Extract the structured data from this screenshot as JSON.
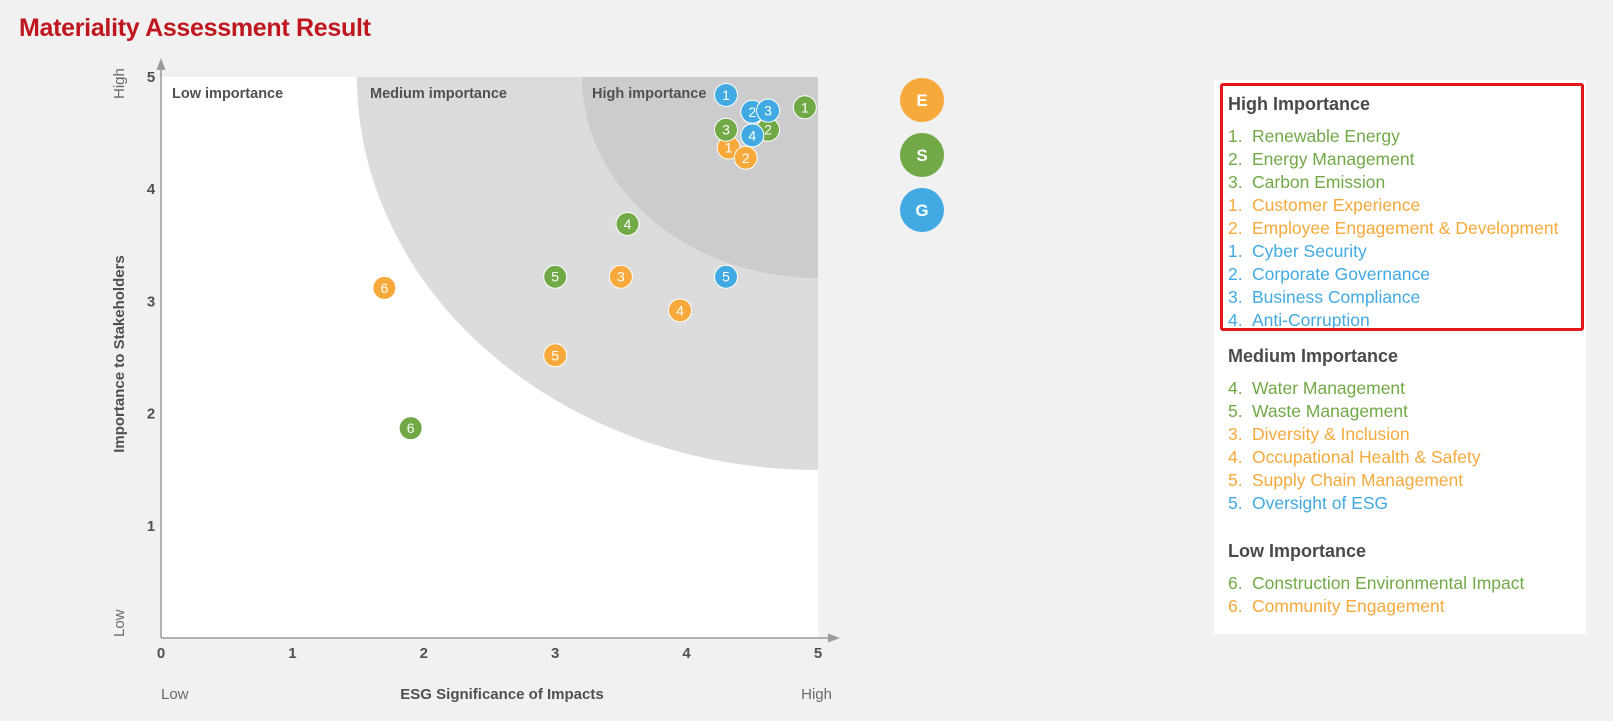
{
  "title": "Materiality Assessment Result",
  "colors": {
    "E": "#f7a93b",
    "S": "#72a947",
    "G": "#41aae3",
    "title": "#c0171e",
    "highlight": "#e3161b"
  },
  "chart_data": {
    "type": "scatter",
    "xlabel": "ESG Significance of Impacts",
    "ylabel": "Importance to Stakeholders",
    "x_low_label": "Low",
    "x_high_label": "High",
    "y_low_label": "Low",
    "y_high_label": "High",
    "xlim": [
      0,
      5
    ],
    "ylim": [
      0,
      5
    ],
    "x_ticks": [
      "0",
      "1",
      "2",
      "3",
      "4",
      "5"
    ],
    "y_ticks": [
      "1",
      "2",
      "3",
      "4",
      "5"
    ],
    "grid": false,
    "regions": [
      {
        "label": "Low importance"
      },
      {
        "label": "Medium importance"
      },
      {
        "label": "High importance"
      }
    ],
    "series": [
      {
        "name": "E",
        "color": "#f7a93b",
        "points": [
          {
            "label": "1",
            "x": 4.32,
            "y": 4.37
          },
          {
            "label": "2",
            "x": 4.45,
            "y": 4.28
          },
          {
            "label": "3",
            "x": 3.5,
            "y": 3.22
          },
          {
            "label": "4",
            "x": 3.95,
            "y": 2.92
          },
          {
            "label": "5",
            "x": 3.0,
            "y": 2.52
          },
          {
            "label": "6",
            "x": 1.7,
            "y": 3.12
          }
        ]
      },
      {
        "name": "S",
        "color": "#72a947",
        "points": [
          {
            "label": "1",
            "x": 4.9,
            "y": 4.73
          },
          {
            "label": "2",
            "x": 4.62,
            "y": 4.53
          },
          {
            "label": "3",
            "x": 4.3,
            "y": 4.53
          },
          {
            "label": "4",
            "x": 3.55,
            "y": 3.69
          },
          {
            "label": "5",
            "x": 3.0,
            "y": 3.22
          },
          {
            "label": "6",
            "x": 1.9,
            "y": 1.87
          }
        ]
      },
      {
        "name": "G",
        "color": "#41aae3",
        "points": [
          {
            "label": "1",
            "x": 4.3,
            "y": 4.84
          },
          {
            "label": "2",
            "x": 4.5,
            "y": 4.69
          },
          {
            "label": "3",
            "x": 4.62,
            "y": 4.7
          },
          {
            "label": "4",
            "x": 4.5,
            "y": 4.48
          },
          {
            "label": "5",
            "x": 4.3,
            "y": 3.22
          }
        ]
      }
    ]
  },
  "legend": {
    "sections": [
      {
        "title": "High Importance",
        "items": [
          {
            "num": "1.",
            "text": "Renewable Energy",
            "cat": "S"
          },
          {
            "num": "2.",
            "text": "Energy Management",
            "cat": "S"
          },
          {
            "num": "3.",
            "text": "Carbon Emission",
            "cat": "S"
          },
          {
            "num": "1.",
            "text": "Customer Experience",
            "cat": "E"
          },
          {
            "num": "2.",
            "text": "Employee Engagement & Development",
            "cat": "E"
          },
          {
            "num": "1.",
            "text": "Cyber Security",
            "cat": "G"
          },
          {
            "num": "2.",
            "text": "Corporate Governance",
            "cat": "G"
          },
          {
            "num": "3.",
            "text": "Business Compliance",
            "cat": "G"
          },
          {
            "num": "4.",
            "text": "Anti-Corruption",
            "cat": "G"
          }
        ]
      },
      {
        "title": "Medium Importance",
        "items": [
          {
            "num": "4.",
            "text": "Water Management",
            "cat": "S"
          },
          {
            "num": "5.",
            "text": "Waste Management",
            "cat": "S"
          },
          {
            "num": "3.",
            "text": "Diversity & Inclusion",
            "cat": "E"
          },
          {
            "num": "4.",
            "text": "Occupational Health & Safety",
            "cat": "E"
          },
          {
            "num": "5.",
            "text": "Supply Chain Management",
            "cat": "E"
          },
          {
            "num": "5.",
            "text": "Oversight of ESG",
            "cat": "G"
          }
        ]
      },
      {
        "title": "Low Importance",
        "items": [
          {
            "num": "6.",
            "text": "Construction Environmental Impact",
            "cat": "S"
          },
          {
            "num": "6.",
            "text": "Community Engagement",
            "cat": "E"
          }
        ]
      }
    ]
  }
}
